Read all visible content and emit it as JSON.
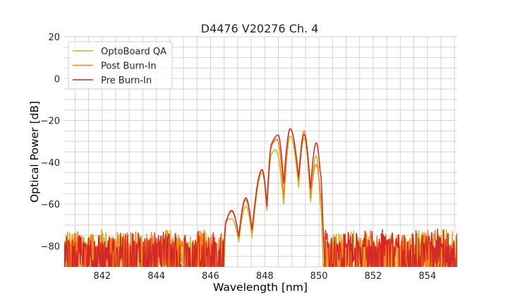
{
  "chart_data": {
    "type": "line",
    "title": "D4476 V20276 Ch. 4",
    "xlabel": "Wavelength [nm]",
    "ylabel": "Optical Power [dB]",
    "xlim": [
      840.6,
      855.1
    ],
    "ylim": [
      -90,
      20
    ],
    "xticks": [
      842,
      844,
      846,
      848,
      850,
      852,
      854
    ],
    "yticks": [
      20,
      0,
      -20,
      -40,
      -60,
      -80
    ],
    "xtick_labels": [
      "842",
      "844",
      "846",
      "848",
      "850",
      "852",
      "854"
    ],
    "ytick_labels": [
      "20",
      "0",
      "−20",
      "−40",
      "−60",
      "−80"
    ],
    "grid": true,
    "minor_grid": {
      "x_step": 0.5,
      "y_step": 5
    },
    "legend": "top-left",
    "noise_floor_range": [
      -90,
      -72
    ],
    "signal_band": [
      846.5,
      850.2
    ],
    "series": [
      {
        "name": "OptoBoard QA",
        "color": "#bcbd22",
        "points": [
          [
            846.55,
            -68
          ],
          [
            846.78,
            -67
          ],
          [
            847.04,
            -78
          ],
          [
            847.3,
            -61
          ],
          [
            847.53,
            -76
          ],
          [
            847.9,
            -45
          ],
          [
            848.08,
            -63
          ],
          [
            848.26,
            -36
          ],
          [
            848.4,
            -34
          ],
          [
            848.7,
            -60
          ],
          [
            848.94,
            -27.5
          ],
          [
            849.25,
            -52
          ],
          [
            849.45,
            -28.5
          ],
          [
            849.69,
            -59
          ],
          [
            849.9,
            -37
          ],
          [
            850.05,
            -60
          ],
          [
            850.15,
            -90
          ]
        ]
      },
      {
        "name": "Post Burn-In",
        "color": "#ff7f0e",
        "points": [
          [
            846.55,
            -69
          ],
          [
            846.78,
            -63.5
          ],
          [
            847.04,
            -75
          ],
          [
            847.3,
            -58
          ],
          [
            847.53,
            -73
          ],
          [
            847.9,
            -43.5
          ],
          [
            848.08,
            -61
          ],
          [
            848.26,
            -32
          ],
          [
            848.45,
            -29
          ],
          [
            848.7,
            -57
          ],
          [
            848.94,
            -24
          ],
          [
            849.25,
            -49
          ],
          [
            849.45,
            -25
          ],
          [
            849.69,
            -57
          ],
          [
            849.9,
            -41
          ],
          [
            850.05,
            -55
          ],
          [
            850.15,
            -72
          ]
        ]
      },
      {
        "name": "Pre Burn-In",
        "color": "#d62728",
        "points": [
          [
            846.55,
            -70
          ],
          [
            846.78,
            -63
          ],
          [
            847.04,
            -75.6
          ],
          [
            847.3,
            -57
          ],
          [
            847.53,
            -72
          ],
          [
            847.9,
            -43.5
          ],
          [
            848.08,
            -61
          ],
          [
            848.26,
            -31
          ],
          [
            848.49,
            -27
          ],
          [
            848.7,
            -50
          ],
          [
            848.94,
            -24
          ],
          [
            849.25,
            -47
          ],
          [
            849.45,
            -26.7
          ],
          [
            849.69,
            -52.6
          ],
          [
            849.9,
            -30.7
          ],
          [
            850.05,
            -45
          ],
          [
            850.15,
            -72
          ]
        ]
      }
    ]
  }
}
